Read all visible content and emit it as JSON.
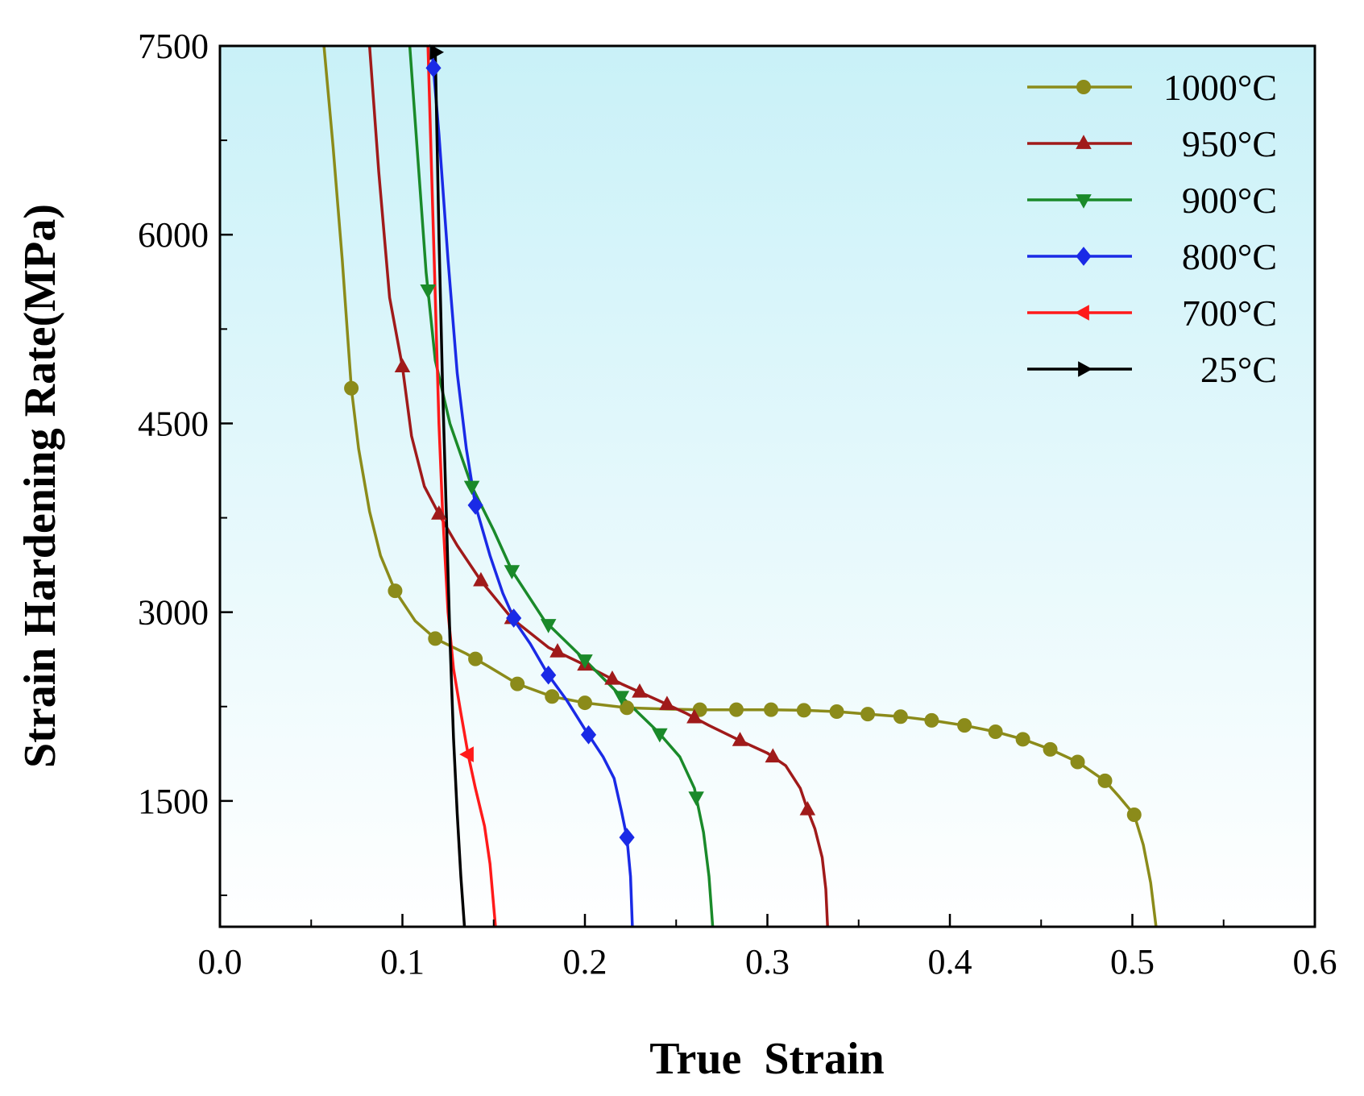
{
  "chart_data": {
    "type": "line",
    "title": "",
    "xlabel": "True  Strain",
    "ylabel": "Strain Hardening Rate(MPa)",
    "xlim": [
      0.0,
      0.6
    ],
    "ylim": [
      500,
      7500
    ],
    "x_ticks": [
      0.0,
      0.1,
      0.2,
      0.3,
      0.4,
      0.5,
      0.6
    ],
    "x_tick_labels": [
      "0.0",
      "0.1",
      "0.2",
      "0.3",
      "0.4",
      "0.5",
      "0.6"
    ],
    "y_ticks": [
      1500,
      3000,
      4500,
      6000,
      7500
    ],
    "y_tick_labels": [
      "1500",
      "3000",
      "4500",
      "6000",
      "7500"
    ],
    "grid": false,
    "legend_position": "top-right",
    "background": {
      "top_color": "#c9f1f8",
      "bottom_color": "#ffffff"
    },
    "series": [
      {
        "name": "1000°C",
        "color": "#8b8b1a",
        "marker": "circle",
        "points": [
          [
            0.057,
            7500
          ],
          [
            0.062,
            6700
          ],
          [
            0.067,
            5800
          ],
          [
            0.072,
            4780
          ],
          [
            0.076,
            4300
          ],
          [
            0.082,
            3800
          ],
          [
            0.088,
            3450
          ],
          [
            0.096,
            3170
          ],
          [
            0.107,
            2930
          ],
          [
            0.118,
            2790
          ],
          [
            0.135,
            2670
          ],
          [
            0.147,
            2570
          ],
          [
            0.163,
            2430
          ],
          [
            0.182,
            2330
          ],
          [
            0.2,
            2280
          ],
          [
            0.223,
            2240
          ],
          [
            0.245,
            2230
          ],
          [
            0.263,
            2225
          ],
          [
            0.283,
            2225
          ],
          [
            0.302,
            2225
          ],
          [
            0.32,
            2220
          ],
          [
            0.338,
            2210
          ],
          [
            0.355,
            2190
          ],
          [
            0.373,
            2170
          ],
          [
            0.39,
            2140
          ],
          [
            0.408,
            2100
          ],
          [
            0.425,
            2050
          ],
          [
            0.44,
            1990
          ],
          [
            0.455,
            1910
          ],
          [
            0.47,
            1810
          ],
          [
            0.485,
            1660
          ],
          [
            0.493,
            1530
          ],
          [
            0.501,
            1390
          ],
          [
            0.506,
            1150
          ],
          [
            0.51,
            850
          ],
          [
            0.513,
            500
          ]
        ],
        "marker_x": [
          0.072,
          0.096,
          0.118,
          0.14,
          0.163,
          0.182,
          0.2,
          0.223,
          0.263,
          0.283,
          0.302,
          0.32,
          0.338,
          0.355,
          0.373,
          0.39,
          0.408,
          0.425,
          0.44,
          0.455,
          0.47,
          0.485,
          0.501
        ]
      },
      {
        "name": "950°C",
        "color": "#a01a1a",
        "marker": "triangle-up",
        "points": [
          [
            0.082,
            7500
          ],
          [
            0.087,
            6500
          ],
          [
            0.093,
            5500
          ],
          [
            0.1,
            4950
          ],
          [
            0.105,
            4400
          ],
          [
            0.112,
            4000
          ],
          [
            0.12,
            3780
          ],
          [
            0.13,
            3530
          ],
          [
            0.143,
            3250
          ],
          [
            0.16,
            2950
          ],
          [
            0.18,
            2720
          ],
          [
            0.2,
            2580
          ],
          [
            0.22,
            2430
          ],
          [
            0.24,
            2300
          ],
          [
            0.255,
            2200
          ],
          [
            0.268,
            2100
          ],
          [
            0.285,
            1980
          ],
          [
            0.3,
            1880
          ],
          [
            0.31,
            1780
          ],
          [
            0.318,
            1600
          ],
          [
            0.322,
            1430
          ],
          [
            0.326,
            1280
          ],
          [
            0.33,
            1050
          ],
          [
            0.332,
            800
          ],
          [
            0.333,
            500
          ]
        ],
        "marker_x": [
          0.1,
          0.12,
          0.143,
          0.16,
          0.185,
          0.2,
          0.215,
          0.23,
          0.245,
          0.26,
          0.285,
          0.303,
          0.322
        ]
      },
      {
        "name": "900°C",
        "color": "#1a8a2a",
        "marker": "triangle-down",
        "points": [
          [
            0.104,
            7500
          ],
          [
            0.108,
            6700
          ],
          [
            0.113,
            5700
          ],
          [
            0.118,
            5000
          ],
          [
            0.126,
            4500
          ],
          [
            0.138,
            4000
          ],
          [
            0.15,
            3650
          ],
          [
            0.16,
            3330
          ],
          [
            0.178,
            2930
          ],
          [
            0.2,
            2620
          ],
          [
            0.22,
            2330
          ],
          [
            0.24,
            2050
          ],
          [
            0.252,
            1850
          ],
          [
            0.26,
            1600
          ],
          [
            0.265,
            1250
          ],
          [
            0.268,
            900
          ],
          [
            0.27,
            500
          ]
        ],
        "marker_x": [
          0.114,
          0.138,
          0.16,
          0.18,
          0.2,
          0.22,
          0.241,
          0.261
        ]
      },
      {
        "name": "800°C",
        "color": "#1a2ae6",
        "marker": "diamond",
        "points": [
          [
            0.116,
            7500
          ],
          [
            0.12,
            6800
          ],
          [
            0.125,
            5800
          ],
          [
            0.13,
            4900
          ],
          [
            0.135,
            4300
          ],
          [
            0.14,
            3850
          ],
          [
            0.148,
            3450
          ],
          [
            0.155,
            3150
          ],
          [
            0.162,
            2920
          ],
          [
            0.17,
            2750
          ],
          [
            0.18,
            2500
          ],
          [
            0.19,
            2300
          ],
          [
            0.2,
            2070
          ],
          [
            0.21,
            1850
          ],
          [
            0.216,
            1680
          ],
          [
            0.22,
            1420
          ],
          [
            0.223,
            1210
          ],
          [
            0.225,
            900
          ],
          [
            0.226,
            500
          ]
        ],
        "marker_x": [
          0.117,
          0.14,
          0.161,
          0.18,
          0.202,
          0.223
        ]
      },
      {
        "name": "700°C",
        "color": "#ff1a1a",
        "marker": "triangle-left",
        "points": [
          [
            0.114,
            7500
          ],
          [
            0.116,
            6500
          ],
          [
            0.118,
            5500
          ],
          [
            0.12,
            4500
          ],
          [
            0.122,
            3800
          ],
          [
            0.125,
            3000
          ],
          [
            0.128,
            2550
          ],
          [
            0.132,
            2200
          ],
          [
            0.136,
            1870
          ],
          [
            0.14,
            1600
          ],
          [
            0.145,
            1300
          ],
          [
            0.148,
            1000
          ],
          [
            0.151,
            500
          ]
        ],
        "marker_x": [
          0.136
        ]
      },
      {
        "name": "25°C",
        "color": "#000000",
        "marker": "triangle-right",
        "points": [
          [
            0.118,
            7450
          ],
          [
            0.12,
            6000
          ],
          [
            0.122,
            4800
          ],
          [
            0.124,
            3800
          ],
          [
            0.126,
            2800
          ],
          [
            0.128,
            2000
          ],
          [
            0.13,
            1400
          ],
          [
            0.132,
            900
          ],
          [
            0.134,
            500
          ]
        ],
        "marker_x": [
          0.118
        ]
      }
    ]
  }
}
